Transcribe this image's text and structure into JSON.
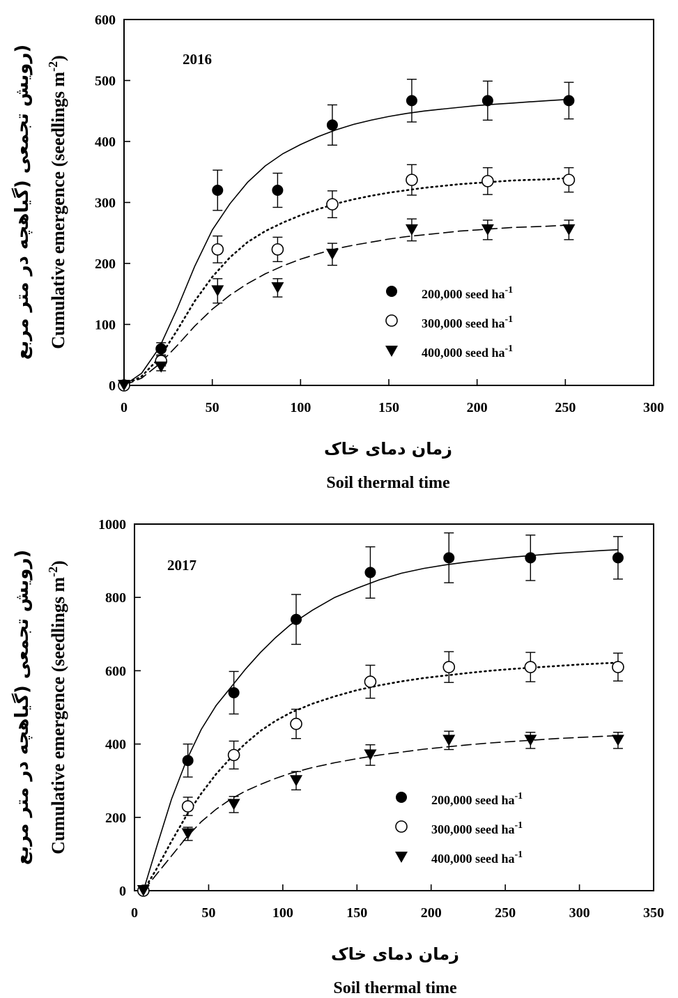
{
  "chart_data": [
    {
      "type": "scatter",
      "year_label": "2016",
      "xlabel": "Soil thermal time",
      "xlabel_fa": "زمان دمای خاک",
      "ylabel": "Cumulative emergence (seedlings m",
      "ylabel_sup": "-2",
      "ylabel_end": ")",
      "ylabel_fa": "(رویش تجمعی (گیاهچه در متر مربع",
      "xlim": [
        0,
        300
      ],
      "ylim": [
        0,
        600
      ],
      "xticks": [
        0,
        50,
        100,
        150,
        200,
        250,
        300
      ],
      "yticks": [
        0,
        100,
        200,
        300,
        400,
        500,
        600
      ],
      "legend_position": "bottom-right",
      "series": [
        {
          "name": "200,000 seed ha",
          "name_sup": "-1",
          "marker": "filled-circle",
          "line": "solid",
          "x": [
            0,
            21,
            53,
            87,
            118,
            163,
            206,
            252
          ],
          "y": [
            0,
            60,
            320,
            320,
            427,
            467,
            467,
            467
          ],
          "err": [
            0,
            10,
            33,
            28,
            33,
            35,
            32,
            30
          ],
          "fit_x": [
            0,
            10,
            20,
            30,
            40,
            50,
            60,
            70,
            80,
            90,
            100,
            110,
            120,
            130,
            140,
            150,
            160,
            170,
            180,
            190,
            200,
            210,
            220,
            230,
            240,
            252
          ],
          "fit_y": [
            0,
            20,
            62,
            125,
            195,
            255,
            298,
            333,
            360,
            380,
            395,
            408,
            419,
            428,
            435,
            441,
            446,
            450,
            453,
            456,
            459,
            461,
            463,
            465,
            467,
            469
          ]
        },
        {
          "name": "300,000 seed ha",
          "name_sup": "-1",
          "marker": "open-circle",
          "line": "dotted",
          "x": [
            0,
            21,
            53,
            87,
            118,
            163,
            206,
            252
          ],
          "y": [
            0,
            40,
            223,
            223,
            297,
            337,
            335,
            337
          ],
          "err": [
            0,
            8,
            22,
            20,
            22,
            25,
            22,
            20
          ],
          "fit_x": [
            0,
            10,
            20,
            30,
            40,
            50,
            60,
            70,
            80,
            90,
            100,
            110,
            120,
            130,
            140,
            150,
            160,
            170,
            180,
            190,
            200,
            210,
            220,
            230,
            240,
            252
          ],
          "fit_y": [
            0,
            15,
            45,
            90,
            138,
            178,
            210,
            235,
            253,
            267,
            279,
            289,
            298,
            305,
            311,
            316,
            320,
            324,
            327,
            330,
            332,
            334,
            336,
            337,
            338,
            340
          ]
        },
        {
          "name": "400,000 seed ha",
          "name_sup": "-1",
          "marker": "filled-triangle-down",
          "line": "dashed",
          "x": [
            0,
            21,
            53,
            87,
            118,
            163,
            206,
            252
          ],
          "y": [
            0,
            30,
            155,
            160,
            215,
            255,
            255,
            255
          ],
          "err": [
            0,
            6,
            20,
            15,
            18,
            18,
            16,
            16
          ],
          "fit_x": [
            0,
            10,
            20,
            30,
            40,
            50,
            60,
            70,
            80,
            90,
            100,
            110,
            120,
            130,
            140,
            150,
            160,
            170,
            180,
            190,
            200,
            210,
            220,
            230,
            240,
            252
          ],
          "fit_y": [
            0,
            12,
            35,
            65,
            97,
            125,
            148,
            167,
            183,
            196,
            207,
            216,
            224,
            230,
            235,
            240,
            244,
            247,
            250,
            253,
            255,
            257,
            259,
            260,
            261,
            263
          ]
        }
      ]
    },
    {
      "type": "scatter",
      "year_label": "2017",
      "xlabel": "Soil thermal time",
      "xlabel_fa": "زمان دمای خاک",
      "ylabel": "Cumulative emergence (seedlings m",
      "ylabel_sup": "-2",
      "ylabel_end": ")",
      "ylabel_fa": "(رویش تجمعی (گیاهچه در متر مربع",
      "xlim": [
        0,
        350
      ],
      "ylim": [
        0,
        1000
      ],
      "xticks": [
        0,
        50,
        100,
        150,
        200,
        250,
        300,
        350
      ],
      "yticks": [
        0,
        200,
        400,
        600,
        800,
        1000
      ],
      "legend_position": "bottom-right",
      "series": [
        {
          "name": "200,000 seed ha",
          "name_sup": "-1",
          "marker": "filled-circle",
          "line": "solid",
          "x": [
            6,
            36,
            67,
            109,
            159,
            212,
            267,
            326
          ],
          "y": [
            0,
            355,
            540,
            740,
            868,
            908,
            908,
            908
          ],
          "err": [
            0,
            45,
            58,
            68,
            70,
            68,
            62,
            58
          ],
          "fit_x": [
            6,
            15,
            25,
            35,
            45,
            55,
            65,
            75,
            85,
            95,
            105,
            120,
            135,
            150,
            165,
            180,
            195,
            210,
            225,
            240,
            255,
            270,
            285,
            300,
            315,
            326
          ],
          "fit_y": [
            0,
            120,
            250,
            355,
            440,
            505,
            555,
            605,
            650,
            690,
            725,
            765,
            800,
            825,
            848,
            866,
            879,
            889,
            897,
            904,
            910,
            915,
            920,
            924,
            928,
            930
          ]
        },
        {
          "name": "300,000 seed ha",
          "name_sup": "-1",
          "marker": "open-circle",
          "line": "dotted",
          "x": [
            6,
            36,
            67,
            109,
            159,
            212,
            267,
            326
          ],
          "y": [
            0,
            230,
            370,
            455,
            570,
            610,
            610,
            610
          ],
          "err": [
            0,
            25,
            38,
            40,
            45,
            42,
            40,
            38
          ],
          "fit_x": [
            6,
            15,
            25,
            35,
            45,
            55,
            65,
            75,
            85,
            95,
            105,
            120,
            135,
            150,
            165,
            180,
            195,
            210,
            225,
            240,
            255,
            270,
            285,
            300,
            315,
            326
          ],
          "fit_y": [
            0,
            60,
            135,
            205,
            265,
            318,
            363,
            402,
            436,
            463,
            485,
            510,
            530,
            547,
            560,
            571,
            580,
            587,
            594,
            600,
            605,
            609,
            613,
            617,
            620,
            622
          ]
        },
        {
          "name": "400,000 seed ha",
          "name_sup": "-1",
          "marker": "filled-triangle-down",
          "line": "dashed",
          "x": [
            6,
            36,
            67,
            109,
            159,
            212,
            267,
            326
          ],
          "y": [
            0,
            155,
            235,
            300,
            370,
            410,
            410,
            410
          ],
          "err": [
            0,
            18,
            22,
            25,
            28,
            25,
            22,
            22
          ],
          "fit_x": [
            6,
            15,
            25,
            35,
            45,
            55,
            65,
            75,
            85,
            95,
            105,
            120,
            135,
            150,
            165,
            180,
            195,
            210,
            225,
            240,
            255,
            270,
            285,
            300,
            315,
            326
          ],
          "fit_y": [
            0,
            45,
            95,
            145,
            188,
            222,
            250,
            272,
            290,
            306,
            320,
            336,
            349,
            360,
            370,
            378,
            386,
            392,
            398,
            403,
            407,
            411,
            415,
            418,
            421,
            423
          ]
        }
      ]
    }
  ]
}
